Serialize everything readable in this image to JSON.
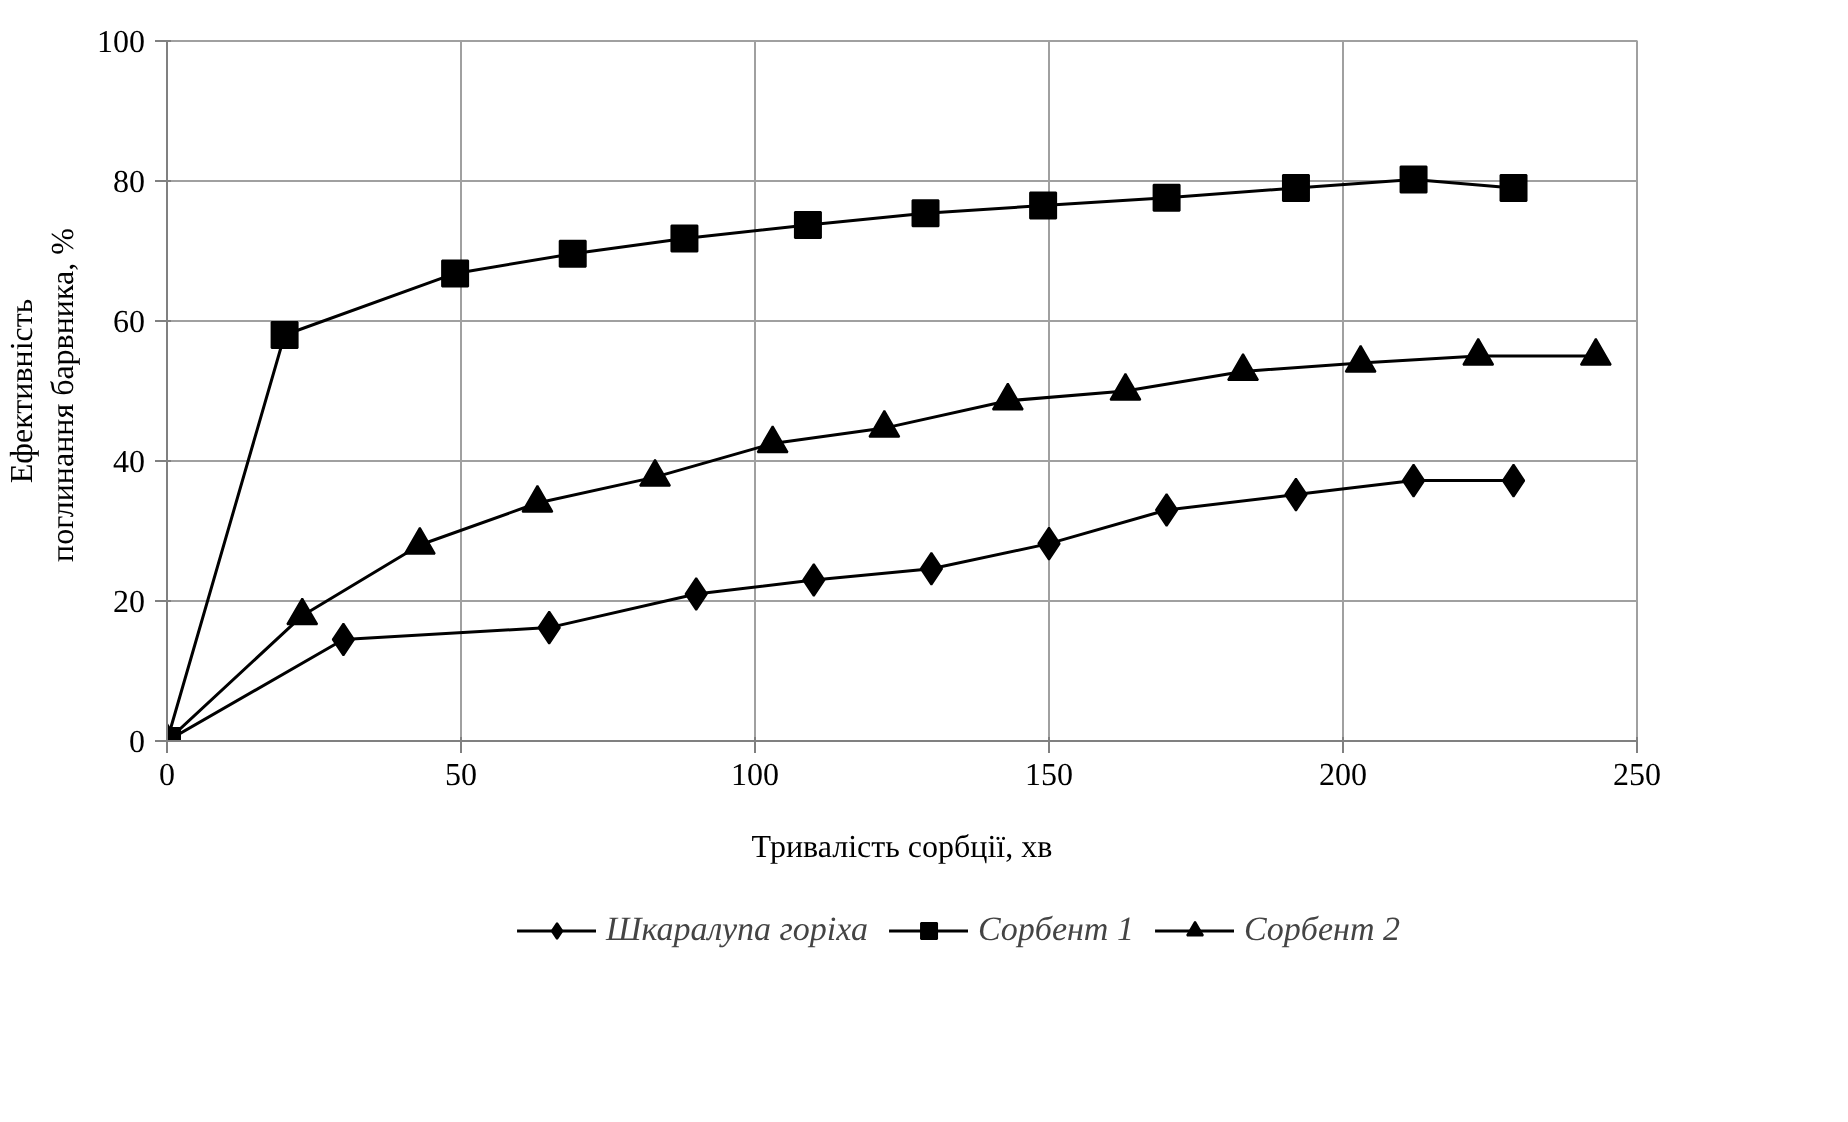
{
  "chart_data": {
    "type": "line",
    "xlabel": "Тривалість сорбції, хв",
    "ylabel": "Ефективність\nпоглинання  барвника, %",
    "xlim": [
      0,
      250
    ],
    "ylim": [
      0,
      100
    ],
    "xticks": [
      0,
      50,
      100,
      150,
      200,
      250
    ],
    "yticks": [
      0,
      20,
      40,
      60,
      80,
      100
    ],
    "grid": true,
    "legend": "bottom",
    "line_style": "solid",
    "series": [
      {
        "name": "Шкаралупа горіха",
        "color": "#000000",
        "marker": "diamond",
        "x": [
          0,
          30,
          65,
          90,
          110,
          130,
          150,
          170,
          192,
          212,
          229
        ],
        "values": [
          0,
          14.5,
          16.2,
          21,
          23,
          24.6,
          28.2,
          33,
          35.2,
          37.2,
          37.2
        ]
      },
      {
        "name": "Сорбент 1",
        "color": "#000000",
        "marker": "square",
        "x": [
          0,
          20,
          49,
          69,
          88,
          109,
          129,
          149,
          170,
          192,
          212,
          229
        ],
        "values": [
          0,
          58,
          66.8,
          69.6,
          71.8,
          73.7,
          75.4,
          76.5,
          77.6,
          79,
          80.2,
          79
        ]
      },
      {
        "name": "Сорбент 2",
        "color": "#000000",
        "marker": "triangle",
        "x": [
          0,
          23,
          43,
          63,
          83,
          103,
          122,
          143,
          163,
          183,
          203,
          223,
          243
        ],
        "values": [
          0,
          17.9,
          28,
          34,
          37.7,
          42.5,
          44.7,
          48.6,
          50,
          52.8,
          54,
          55,
          55
        ]
      }
    ]
  }
}
